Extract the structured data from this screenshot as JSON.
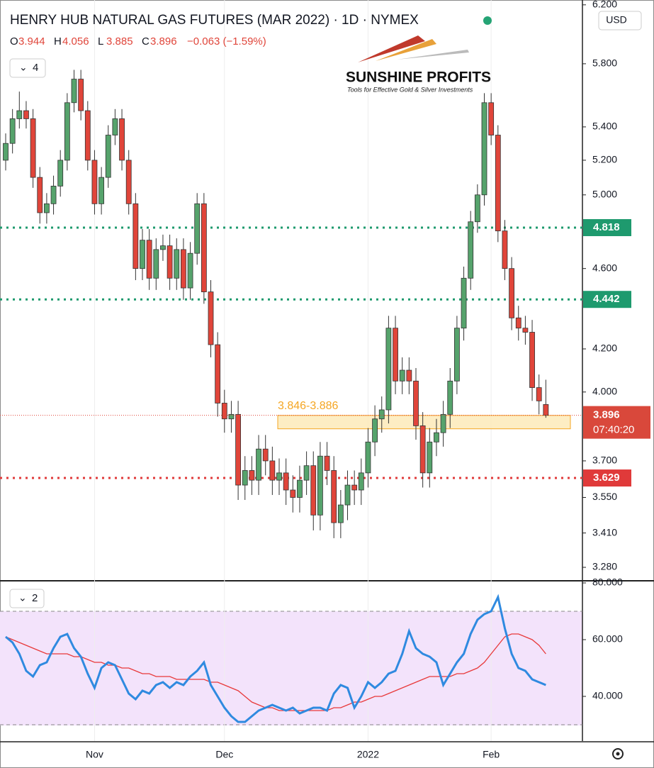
{
  "chart_data": {
    "type": "candlestick",
    "title": "HENRY HUB NATURAL GAS FUTURES (MAR 2022) · 1D · NYMEX",
    "ohlc_labels": [
      "O",
      "H",
      "L",
      "C"
    ],
    "change_label": "−0.063 (−1.59%)",
    "currency": "USD",
    "pane_buttons": [
      "4",
      "2"
    ],
    "logo": {
      "name": "SUNSHINE PROFITS",
      "tagline": "Tools for Effective Gold & Silver Investments"
    },
    "countdown": "07:40:20",
    "log_scale": true,
    "up_color": "#56a36c",
    "down_color": "#e0453a",
    "categories": [
      null,
      null,
      null,
      null,
      null,
      null,
      null,
      null,
      null,
      null,
      null,
      null,
      null,
      "Nov",
      null,
      null,
      null,
      null,
      null,
      null,
      null,
      null,
      null,
      null,
      null,
      null,
      null,
      null,
      null,
      null,
      null,
      null,
      "Dec",
      null,
      null,
      null,
      null,
      null,
      null,
      null,
      null,
      null,
      null,
      null,
      null,
      null,
      null,
      null,
      null,
      null,
      null,
      null,
      null,
      "2022",
      null,
      null,
      null,
      null,
      null,
      null,
      null,
      null,
      null,
      null,
      null,
      null,
      null,
      null,
      null,
      null,
      null,
      "Feb",
      null,
      null,
      null,
      null,
      null,
      null,
      null,
      null
    ],
    "ohlc": [
      [
        5.2,
        5.36,
        5.14,
        5.3
      ],
      [
        5.3,
        5.51,
        5.24,
        5.45
      ],
      [
        5.45,
        5.62,
        5.39,
        5.5
      ],
      [
        5.5,
        5.56,
        5.39,
        5.45
      ],
      [
        5.45,
        5.51,
        5.04,
        5.1
      ],
      [
        5.1,
        5.16,
        4.84,
        4.9
      ],
      [
        4.9,
        5.01,
        4.84,
        4.95
      ],
      [
        4.95,
        5.11,
        4.89,
        5.05
      ],
      [
        5.05,
        5.26,
        4.99,
        5.2
      ],
      [
        5.2,
        5.61,
        5.14,
        5.55
      ],
      [
        5.55,
        5.76,
        5.49,
        5.7
      ],
      [
        5.7,
        5.76,
        5.44,
        5.5
      ],
      [
        5.5,
        5.56,
        5.14,
        5.2
      ],
      [
        5.2,
        5.26,
        4.89,
        4.95
      ],
      [
        4.95,
        5.16,
        4.89,
        5.1
      ],
      [
        5.1,
        5.41,
        5.04,
        5.35
      ],
      [
        5.35,
        5.51,
        5.29,
        5.45
      ],
      [
        5.45,
        5.51,
        5.14,
        5.2
      ],
      [
        5.2,
        5.26,
        4.89,
        4.95
      ],
      [
        4.95,
        5.01,
        4.54,
        4.6
      ],
      [
        4.6,
        4.81,
        4.54,
        4.75
      ],
      [
        4.75,
        4.81,
        4.49,
        4.55
      ],
      [
        4.55,
        4.76,
        4.49,
        4.7
      ],
      [
        4.7,
        4.78,
        4.64,
        4.72
      ],
      [
        4.72,
        4.78,
        4.49,
        4.55
      ],
      [
        4.55,
        4.76,
        4.49,
        4.7
      ],
      [
        4.7,
        4.76,
        4.44,
        4.5
      ],
      [
        4.5,
        4.74,
        4.44,
        4.68
      ],
      [
        4.68,
        5.01,
        4.62,
        4.95
      ],
      [
        4.95,
        5.01,
        4.42,
        4.48
      ],
      [
        4.48,
        4.54,
        4.16,
        4.22
      ],
      [
        4.22,
        4.28,
        3.89,
        3.95
      ],
      [
        3.95,
        4.01,
        3.82,
        3.88
      ],
      [
        3.88,
        3.96,
        3.82,
        3.9
      ],
      [
        3.9,
        3.96,
        3.54,
        3.6
      ],
      [
        3.6,
        3.72,
        3.54,
        3.66
      ],
      [
        3.66,
        3.72,
        3.56,
        3.62
      ],
      [
        3.62,
        3.81,
        3.56,
        3.75
      ],
      [
        3.75,
        3.81,
        3.64,
        3.7
      ],
      [
        3.7,
        3.76,
        3.56,
        3.62
      ],
      [
        3.62,
        3.71,
        3.56,
        3.65
      ],
      [
        3.65,
        3.71,
        3.52,
        3.58
      ],
      [
        3.58,
        3.64,
        3.49,
        3.55
      ],
      [
        3.55,
        3.68,
        3.49,
        3.62
      ],
      [
        3.62,
        3.74,
        3.56,
        3.68
      ],
      [
        3.68,
        3.74,
        3.42,
        3.48
      ],
      [
        3.48,
        3.78,
        3.42,
        3.72
      ],
      [
        3.72,
        3.78,
        3.6,
        3.66
      ],
      [
        3.66,
        3.72,
        3.39,
        3.45
      ],
      [
        3.45,
        3.58,
        3.39,
        3.52
      ],
      [
        3.52,
        3.66,
        3.46,
        3.6
      ],
      [
        3.6,
        3.66,
        3.52,
        3.58
      ],
      [
        3.58,
        3.71,
        3.52,
        3.65
      ],
      [
        3.65,
        3.84,
        3.59,
        3.78
      ],
      [
        3.78,
        3.94,
        3.72,
        3.88
      ],
      [
        3.88,
        3.98,
        3.82,
        3.92
      ],
      [
        3.92,
        4.36,
        3.86,
        4.3
      ],
      [
        4.3,
        4.36,
        3.99,
        4.05
      ],
      [
        4.05,
        4.16,
        3.99,
        4.1
      ],
      [
        4.1,
        4.16,
        3.99,
        4.05
      ],
      [
        4.05,
        4.11,
        3.79,
        3.85
      ],
      [
        3.85,
        3.91,
        3.59,
        3.65
      ],
      [
        3.65,
        3.84,
        3.59,
        3.78
      ],
      [
        3.78,
        3.88,
        3.72,
        3.82
      ],
      [
        3.82,
        3.96,
        3.76,
        3.9
      ],
      [
        3.9,
        4.11,
        3.84,
        4.05
      ],
      [
        4.05,
        4.36,
        3.99,
        4.3
      ],
      [
        4.3,
        4.61,
        4.24,
        4.55
      ],
      [
        4.55,
        4.91,
        4.49,
        4.85
      ],
      [
        4.85,
        5.06,
        4.79,
        5.0
      ],
      [
        5.0,
        5.61,
        4.94,
        5.55
      ],
      [
        5.55,
        5.61,
        5.29,
        5.35
      ],
      [
        5.35,
        5.41,
        4.74,
        4.8
      ],
      [
        4.8,
        4.86,
        4.54,
        4.6
      ],
      [
        4.6,
        4.66,
        4.29,
        4.35
      ],
      [
        4.35,
        4.41,
        4.24,
        4.3
      ],
      [
        4.3,
        4.36,
        4.22,
        4.28
      ],
      [
        4.28,
        4.34,
        3.96,
        4.02
      ],
      [
        4.02,
        4.08,
        3.9,
        3.96
      ],
      [
        3.944,
        4.056,
        3.885,
        3.896
      ]
    ],
    "ylim": [
      3.233,
      6.234
    ],
    "yticks": [
      {
        "value": 6.2,
        "label": "6.200"
      },
      {
        "value": 5.8,
        "label": "5.800"
      },
      {
        "value": 5.4,
        "label": "5.400"
      },
      {
        "value": 5.2,
        "label": "5.200"
      },
      {
        "value": 5.0,
        "label": "5.000"
      },
      {
        "value": 4.6,
        "label": "4.600"
      },
      {
        "value": 4.2,
        "label": "4.200"
      },
      {
        "value": 4.0,
        "label": "4.000"
      },
      {
        "value": 3.7,
        "label": "3.700"
      },
      {
        "value": 3.55,
        "label": "3.550"
      },
      {
        "value": 3.41,
        "label": "3.410"
      },
      {
        "value": 3.28,
        "label": "3.280"
      }
    ],
    "levels": [
      {
        "value": 4.818,
        "color": "#1e9a6e"
      },
      {
        "value": 4.442,
        "color": "#1e9a6e"
      },
      {
        "value": 3.629,
        "color": "#e03a3a"
      }
    ],
    "zone": {
      "low": 3.846,
      "high": 3.886,
      "label": "3.846-3.886",
      "color": "#f5a623"
    },
    "rsi": {
      "color": "#2f8ae0",
      "ma_color": "#e8393a",
      "band": [
        30,
        70
      ],
      "values": [
        61,
        59,
        55,
        49,
        47,
        51,
        52,
        57,
        61,
        62,
        57,
        54,
        48,
        43,
        50,
        52,
        51,
        46,
        41,
        39,
        42,
        41,
        44,
        45,
        43,
        45,
        44,
        47,
        49,
        52,
        44,
        40,
        36,
        33,
        31,
        31,
        33,
        35,
        36,
        37,
        36,
        35,
        36,
        34,
        35,
        36,
        36,
        35,
        41,
        44,
        43,
        36,
        40,
        45,
        43,
        45,
        48,
        49,
        55,
        63,
        57,
        55,
        54,
        52,
        44,
        48,
        52,
        55,
        62,
        67,
        69,
        70,
        75,
        64,
        55,
        50,
        49,
        46,
        45,
        44
      ],
      "ma": [
        61,
        60,
        59,
        58,
        57,
        56,
        55,
        55,
        55,
        55,
        54,
        54,
        53,
        52,
        52,
        51,
        51,
        50,
        50,
        49,
        48,
        48,
        47,
        47,
        47,
        46,
        46,
        46,
        46,
        46,
        45,
        45,
        44,
        43,
        42,
        40,
        38,
        37,
        36,
        36,
        35,
        35,
        35,
        35,
        35,
        35,
        35,
        35,
        36,
        36,
        37,
        38,
        38,
        39,
        40,
        40,
        41,
        42,
        43,
        44,
        45,
        46,
        47,
        47,
        47,
        47,
        48,
        48,
        49,
        50,
        52,
        55,
        58,
        61,
        62,
        62,
        61,
        60,
        58,
        55
      ],
      "ylim": [
        24.25,
        80.5
      ],
      "yticks": [
        {
          "value": 80,
          "label": "80.000"
        },
        {
          "value": 60,
          "label": "60.000"
        },
        {
          "value": 40,
          "label": "40.000"
        }
      ]
    }
  }
}
